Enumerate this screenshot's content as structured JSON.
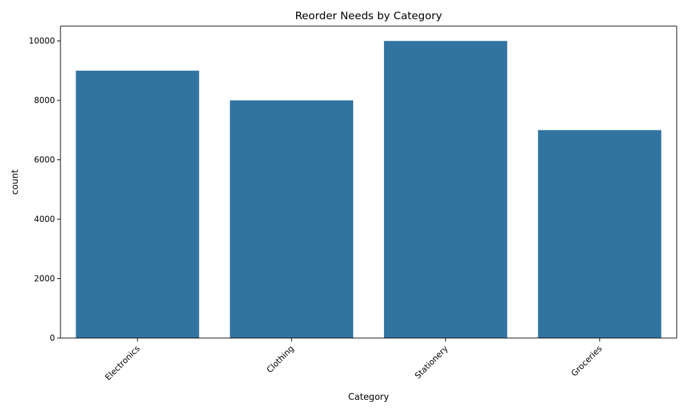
{
  "chart_data": {
    "type": "bar",
    "title": "Reorder Needs by Category",
    "xlabel": "Category",
    "ylabel": "count",
    "categories": [
      "Electronics",
      "Clothing",
      "Stationery",
      "Groceries"
    ],
    "values": [
      9000,
      8000,
      10000,
      7000
    ],
    "ylim": [
      0,
      10500
    ],
    "yticks": [
      0,
      2000,
      4000,
      6000,
      8000,
      10000
    ],
    "ytick_labels": [
      "0",
      "2000",
      "4000",
      "6000",
      "8000",
      "10000"
    ],
    "xtick_rotation_deg": 45,
    "grid": false,
    "legend": "none",
    "colors": {
      "bar": "#3274a1",
      "axis": "#000000",
      "background": "#ffffff"
    }
  }
}
